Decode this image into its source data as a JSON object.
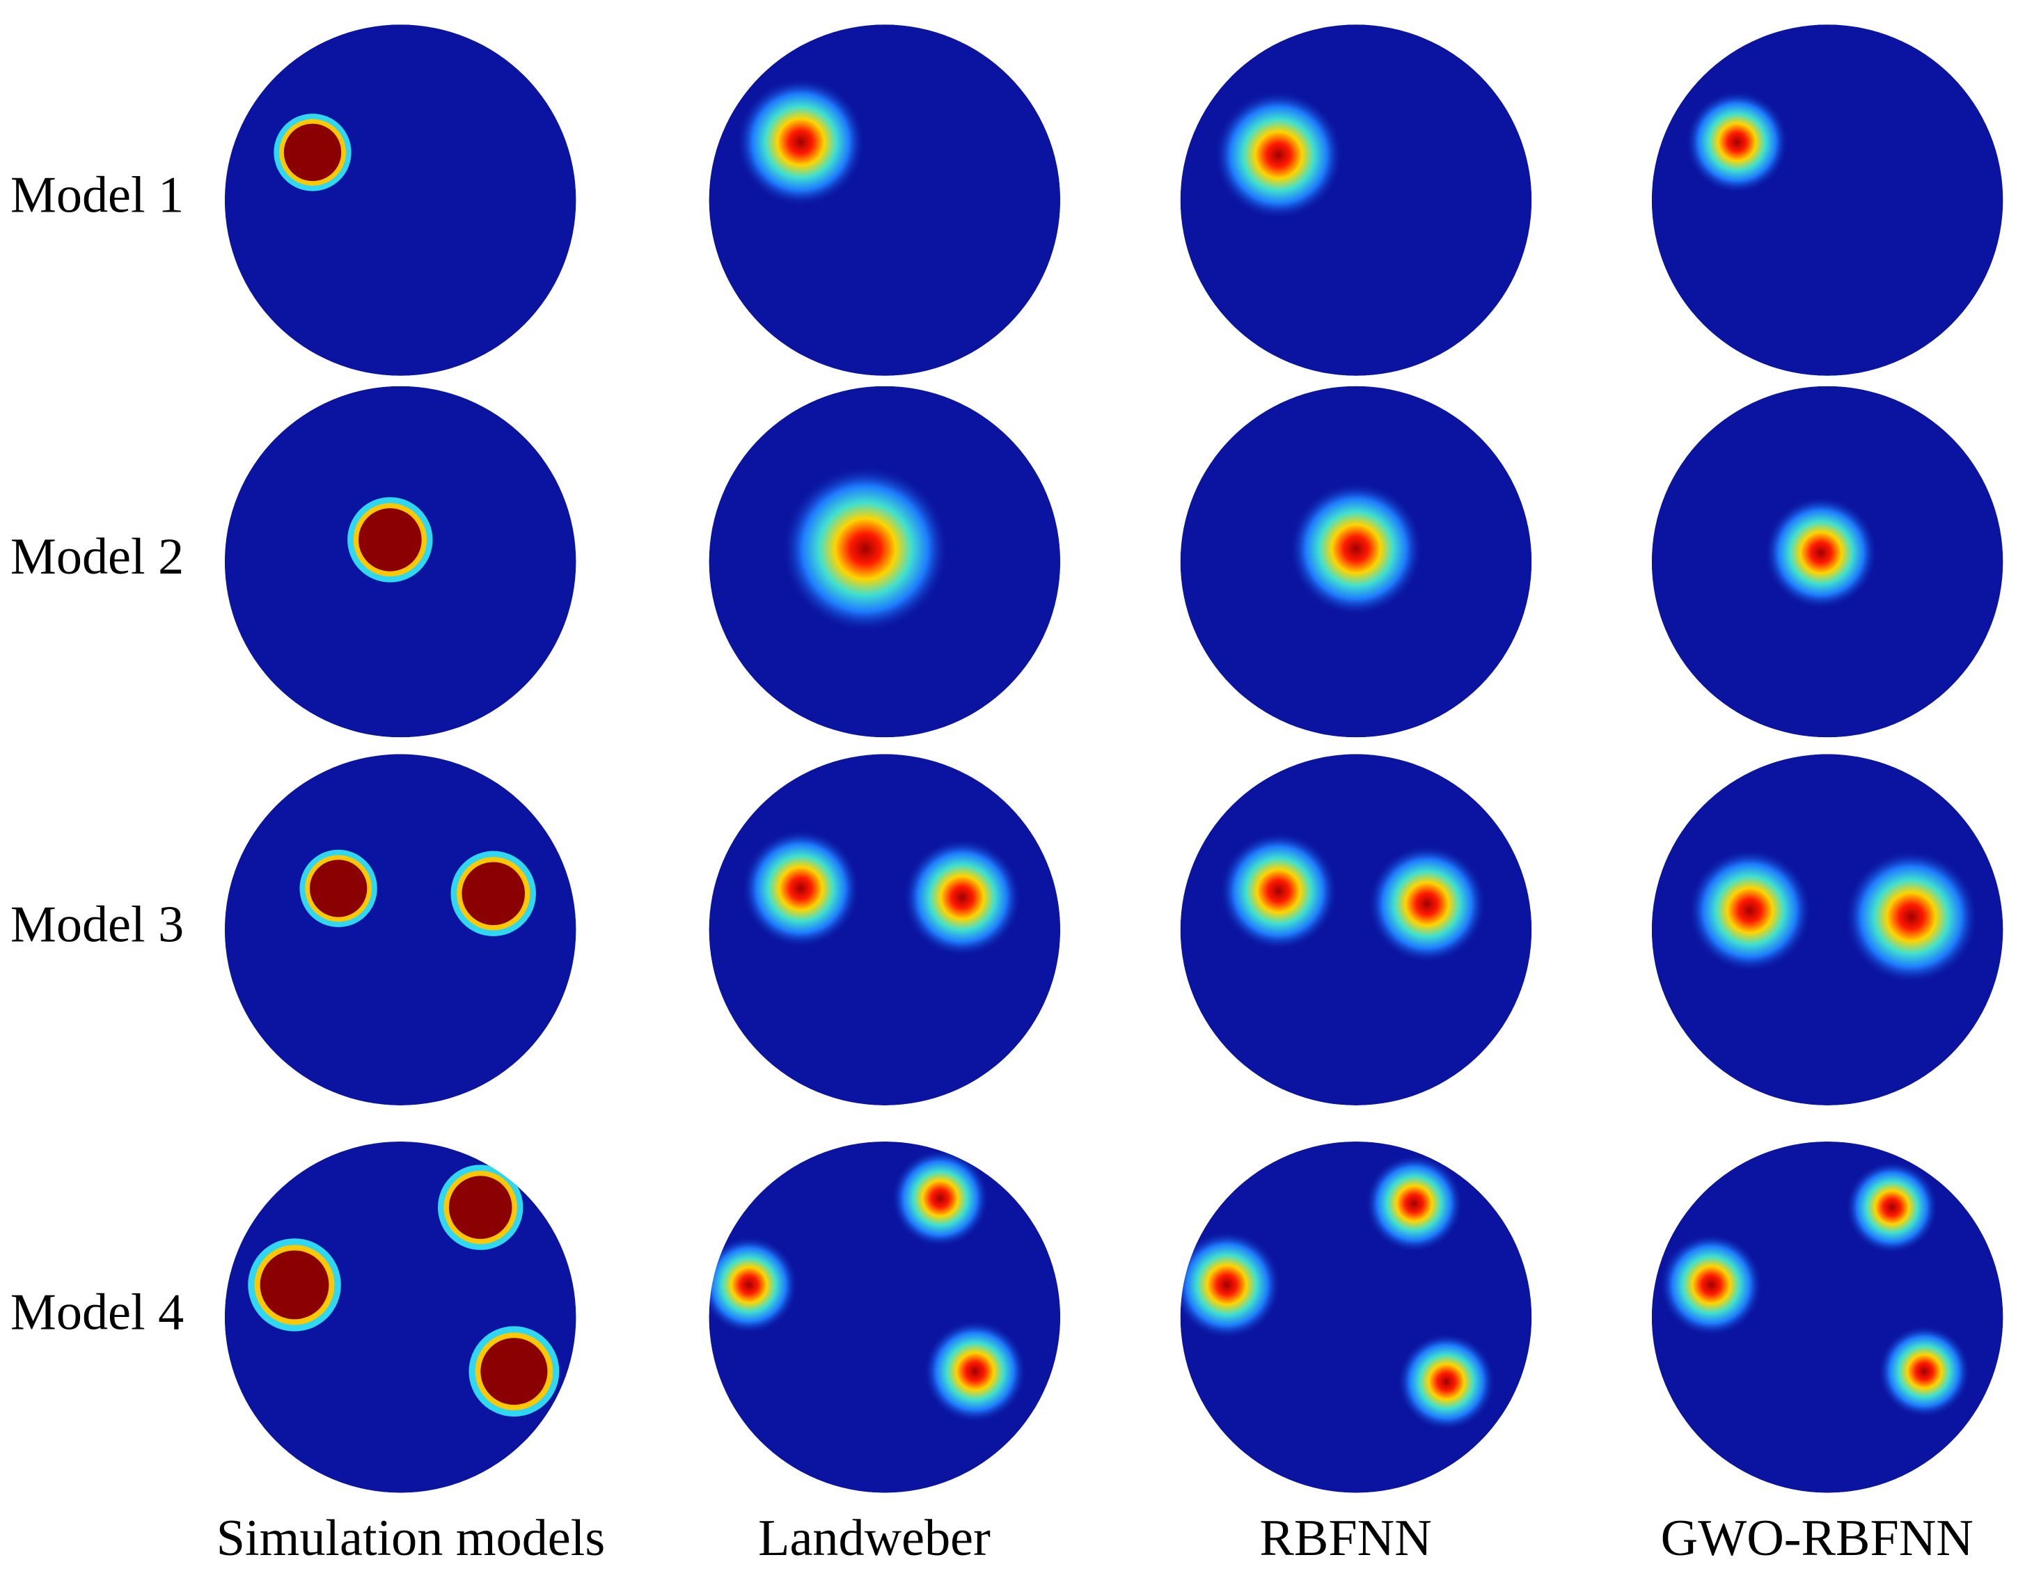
{
  "rows": [
    "Model 1",
    "Model 2",
    "Model 3",
    "Model 4"
  ],
  "columns": [
    "Simulation models",
    "Landweber",
    "RBFNN",
    "GWO-RBFNN"
  ]
}
